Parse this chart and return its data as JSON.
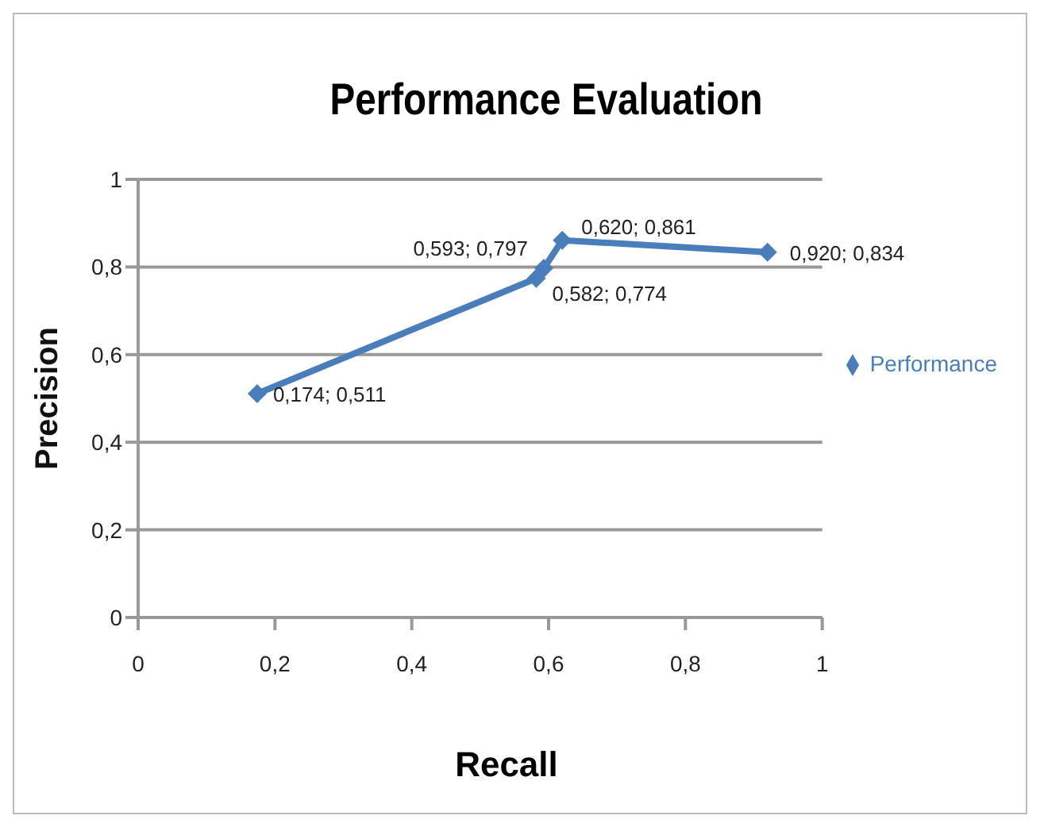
{
  "chart_data": {
    "type": "line",
    "title": "Performance Evaluation",
    "xlabel": "Recall",
    "ylabel": "Precision",
    "series": [
      {
        "name": "Performance",
        "color": "#4a7ebb",
        "x": [
          0.174,
          0.582,
          0.593,
          0.62,
          0.92
        ],
        "values": [
          0.511,
          0.774,
          0.797,
          0.861,
          0.834
        ],
        "value_labels": [
          "0,174; 0,511",
          "0,582; 0,774",
          "0,593; 0,797",
          "0,620; 0,861",
          "0,920; 0,834"
        ]
      }
    ],
    "xlim": [
      0,
      1
    ],
    "xticks": [
      0,
      {
        "value": 0.2,
        "label": "0,2"
      },
      {
        "value": 0.4,
        "label": "0,4"
      },
      {
        "value": 0.6,
        "label": "0,6"
      },
      {
        "value": 0.8,
        "label": "0,8"
      },
      1
    ],
    "ylim": [
      0,
      1
    ],
    "yticks": [
      0,
      {
        "value": 0.2,
        "label": "0,2"
      },
      {
        "value": 0.4,
        "label": "0,4"
      },
      {
        "value": 0.6,
        "label": "0,6"
      },
      {
        "value": 0.8,
        "label": "0,8"
      },
      1
    ],
    "grid": "y",
    "legend": "right",
    "marker": "diamond",
    "line_style": "solid"
  }
}
